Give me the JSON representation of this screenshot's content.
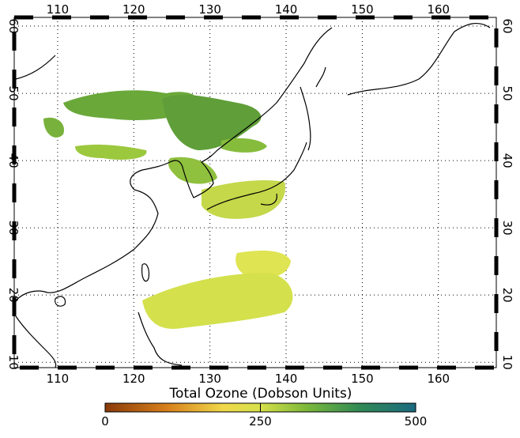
{
  "map": {
    "lon_ticks": [
      110,
      120,
      130,
      140,
      150,
      160
    ],
    "lat_ticks": [
      10,
      20,
      30,
      40,
      50,
      60
    ],
    "lon_range": [
      104.3,
      167.6
    ],
    "lat_range": [
      9.2,
      61.3
    ]
  },
  "colorbar": {
    "title": "Total Ozone (Dobson Units)",
    "range": [
      0,
      500
    ],
    "ticks": [
      0,
      250,
      500
    ]
  }
}
